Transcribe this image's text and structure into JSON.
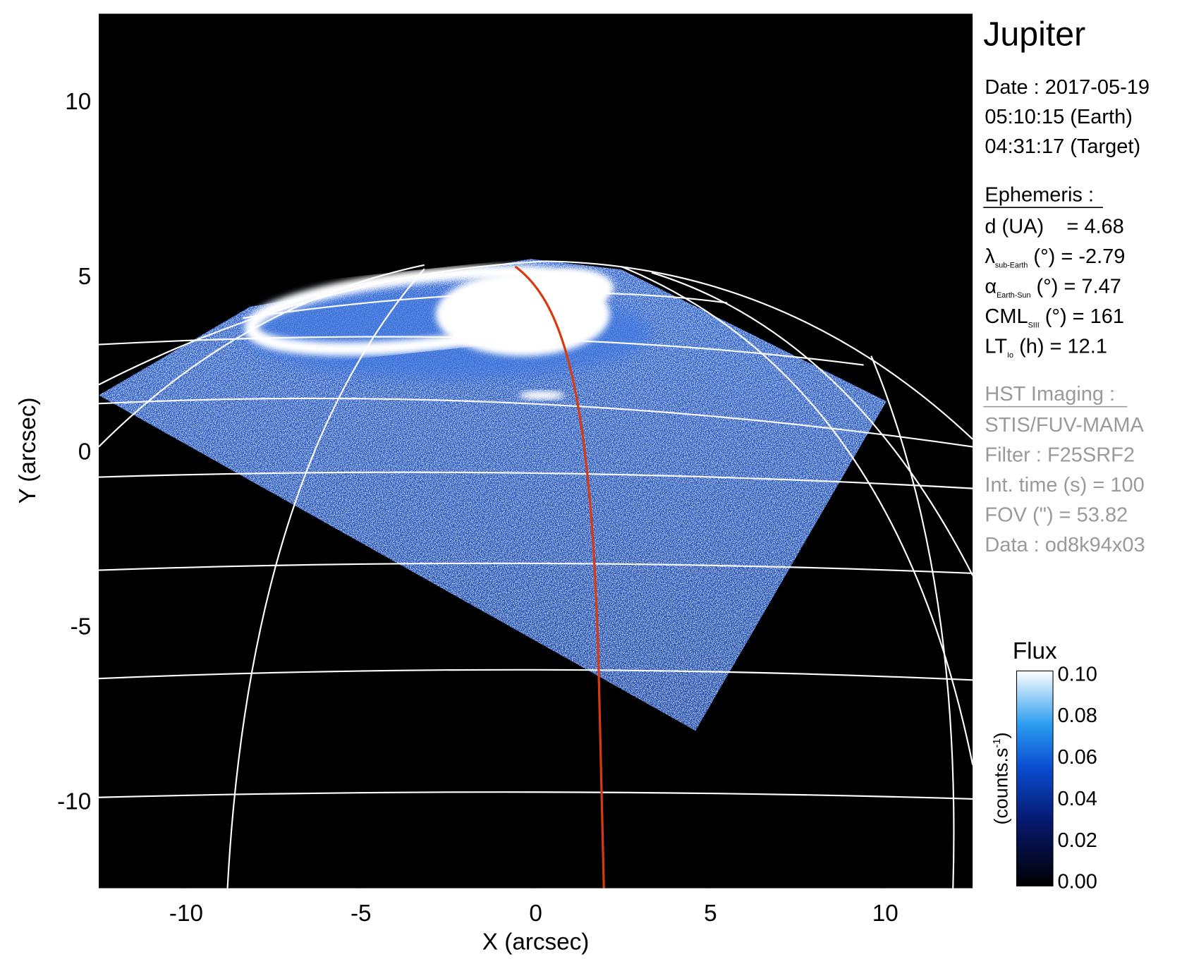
{
  "chart_data": {
    "type": "image",
    "title": "Jupiter",
    "xlabel": "X (arcsec)",
    "ylabel": "Y (arcsec)",
    "xlim": [
      -12.5,
      12.5
    ],
    "ylim": [
      -12.5,
      12.5
    ],
    "xticks": [
      -10,
      -5,
      0,
      5,
      10
    ],
    "yticks": [
      -10,
      -5,
      0,
      5,
      10
    ],
    "observation": [
      "Date : 2017-05-19",
      "05:10:15 (Earth)",
      "04:31:17 (Target)"
    ],
    "ephemeris": {
      "heading": "Ephemeris :",
      "lines": [
        {
          "text": "d (UA)    = 4.68"
        },
        {
          "symbol": "λ",
          "sub": "sub-Earth",
          "text": " (°) = -2.79"
        },
        {
          "symbol": "α",
          "sub": "Earth-Sun",
          "text": " (°) = 7.47"
        },
        {
          "symbol": "CML",
          "sub": "SIII",
          "text": " (°) = 161"
        },
        {
          "symbol": "LT",
          "sub": "Io",
          "text": " (h) = 12.1"
        }
      ]
    },
    "imaging": {
      "heading": "HST Imaging :",
      "lines": [
        "STIS/FUV-MAMA",
        "Filter : F25SRF2",
        "Int. time (s) = 100",
        "FOV (\") = 53.82",
        "Data : od8k94x03"
      ]
    },
    "colorbar": {
      "title": "Flux",
      "label": {
        "text": "(counts.s",
        "sup": "-1",
        "close": ")"
      },
      "lim": [
        0,
        0.1
      ],
      "ticks": [
        {
          "value": 0,
          "label": "0.00"
        },
        {
          "value": 0.02,
          "label": "0.02"
        },
        {
          "value": 0.04,
          "label": "0.04"
        },
        {
          "value": 0.06,
          "label": "0.06"
        },
        {
          "value": 0.08,
          "label": "0.08"
        },
        {
          "value": 0.1,
          "label": "0.10"
        }
      ]
    }
  }
}
